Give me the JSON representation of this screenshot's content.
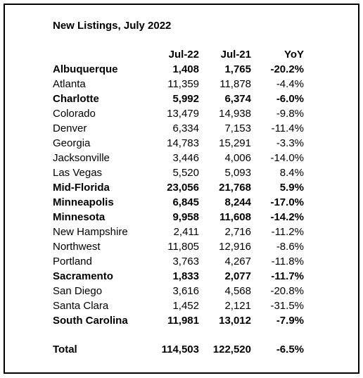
{
  "title": "New Listings, July 2022",
  "columns": [
    "",
    "Jul-22",
    "Jul-21",
    "YoY"
  ],
  "rows": [
    {
      "cells": [
        "Albuquerque",
        "1,408",
        "1,765",
        "-20.2%"
      ],
      "bold": true
    },
    {
      "cells": [
        "Atlanta",
        "11,359",
        "11,878",
        "-4.4%"
      ],
      "bold": false
    },
    {
      "cells": [
        "Charlotte",
        "5,992",
        "6,374",
        "-6.0%"
      ],
      "bold": true
    },
    {
      "cells": [
        "Colorado",
        "13,479",
        "14,938",
        "-9.8%"
      ],
      "bold": false
    },
    {
      "cells": [
        "Denver",
        "6,334",
        "7,153",
        "-11.4%"
      ],
      "bold": false
    },
    {
      "cells": [
        "Georgia",
        "14,783",
        "15,291",
        "-3.3%"
      ],
      "bold": false
    },
    {
      "cells": [
        "Jacksonville",
        "3,446",
        "4,006",
        "-14.0%"
      ],
      "bold": false
    },
    {
      "cells": [
        "Las Vegas",
        "5,520",
        "5,093",
        "8.4%"
      ],
      "bold": false
    },
    {
      "cells": [
        "Mid-Florida",
        "23,056",
        "21,768",
        "5.9%"
      ],
      "bold": true
    },
    {
      "cells": [
        "Minneapolis",
        "6,845",
        "8,244",
        "-17.0%"
      ],
      "bold": true
    },
    {
      "cells": [
        "Minnesota",
        "9,958",
        "11,608",
        "-14.2%"
      ],
      "bold": true
    },
    {
      "cells": [
        "New Hampshire",
        "2,411",
        "2,716",
        "-11.2%"
      ],
      "bold": false
    },
    {
      "cells": [
        "Northwest",
        "11,805",
        "12,916",
        "-8.6%"
      ],
      "bold": false
    },
    {
      "cells": [
        "Portland",
        "3,763",
        "4,267",
        "-11.8%"
      ],
      "bold": false
    },
    {
      "cells": [
        "Sacramento",
        "1,833",
        "2,077",
        "-11.7%"
      ],
      "bold": true
    },
    {
      "cells": [
        "San Diego",
        "3,616",
        "4,568",
        "-20.8%"
      ],
      "bold": false
    },
    {
      "cells": [
        "Santa Clara",
        "1,452",
        "2,121",
        "-31.5%"
      ],
      "bold": false
    },
    {
      "cells": [
        "South Carolina",
        "11,981",
        "13,012",
        "-7.9%"
      ],
      "bold": true
    }
  ],
  "total": {
    "cells": [
      "Total",
      "114,503",
      "122,520",
      "-6.5%"
    ],
    "bold": true
  }
}
